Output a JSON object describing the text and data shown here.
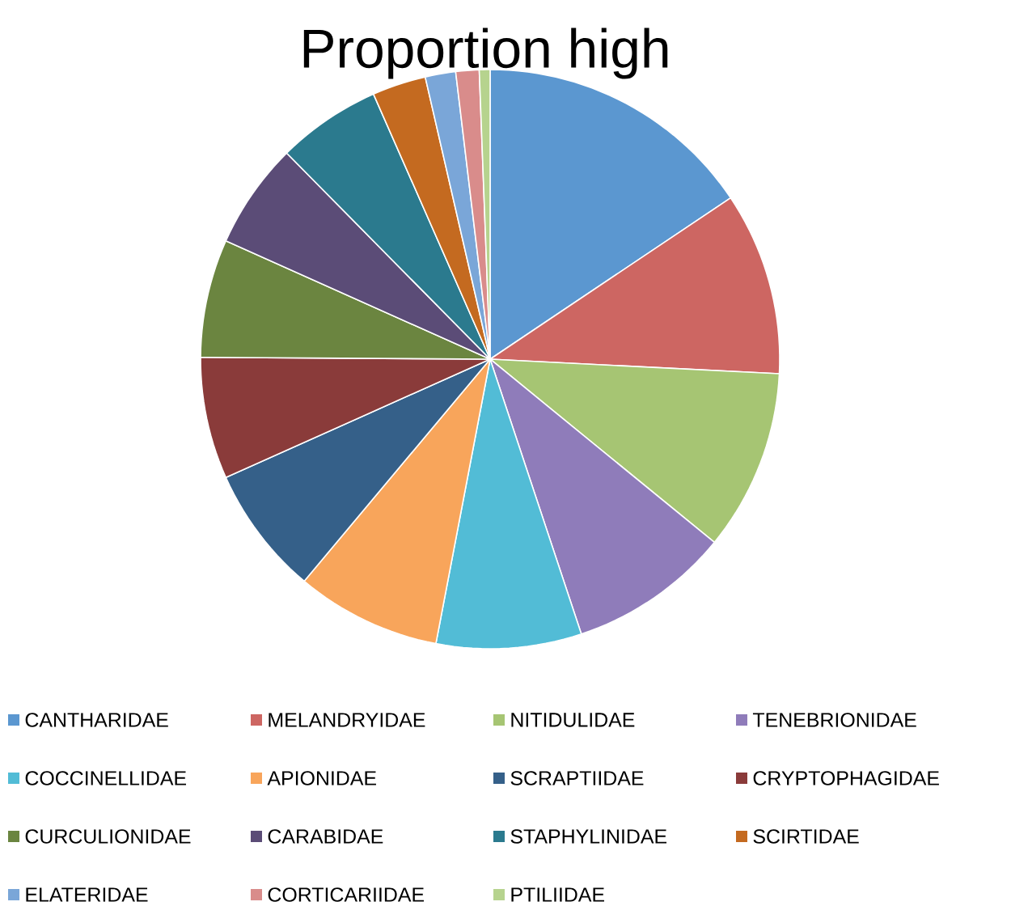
{
  "chart_data": {
    "type": "pie",
    "title": "Proportion high",
    "categories": [
      "CANTHARIDAE",
      "MELANDRYIDAE",
      "NITIDULIDAE",
      "TENEBRIONIDAE",
      "COCCINELLIDAE",
      "APIONIDAE",
      "SCRAPTIIDAE",
      "CRYPTOPHAGIDAE",
      "CURCULIONIDAE",
      "CARABIDAE",
      "STAPHYLINIDAE",
      "SCIRTIDAE",
      "ELATERIDAE",
      "CORTICARIIDAE",
      "PTILIIDAE"
    ],
    "values": [
      15.6,
      10.2,
      10.1,
      9.0,
      8.1,
      8.1,
      7.2,
      6.8,
      6.6,
      5.9,
      5.8,
      3.0,
      1.7,
      1.3,
      0.6
    ],
    "colors": [
      "#5b97d0",
      "#cd6662",
      "#a6c573",
      "#8f7cba",
      "#52bcd6",
      "#f8a55b",
      "#356089",
      "#8a3b3a",
      "#6b8540",
      "#5b4c77",
      "#2b7a8e",
      "#c46a20",
      "#7aa6d8",
      "#d98c8b",
      "#b6d38e"
    ],
    "legend": "bottom"
  }
}
